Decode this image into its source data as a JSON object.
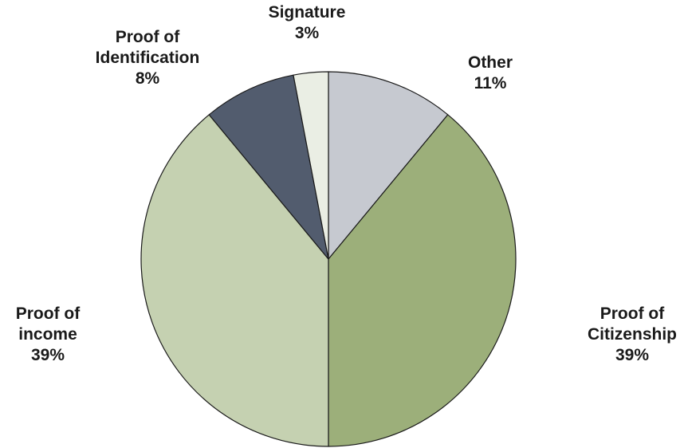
{
  "chart_data": {
    "type": "pie",
    "start_angle_deg": 0,
    "direction": "clockwise",
    "slices": [
      {
        "lines": [
          "Other"
        ],
        "value_label": "11%",
        "value": 11,
        "color": "#c6c9d0"
      },
      {
        "lines": [
          "Proof of",
          "Citizenship"
        ],
        "value_label": "39%",
        "value": 39,
        "color": "#9caf7a"
      },
      {
        "lines": [
          "Proof of",
          "income"
        ],
        "value_label": "39%",
        "value": 39,
        "color": "#c5d1b1"
      },
      {
        "lines": [
          "Proof of",
          "Identification"
        ],
        "value_label": "8%",
        "value": 8,
        "color": "#525c6e"
      },
      {
        "lines": [
          "Signature"
        ],
        "value_label": "3%",
        "value": 3,
        "color": "#eaeee4"
      }
    ]
  }
}
